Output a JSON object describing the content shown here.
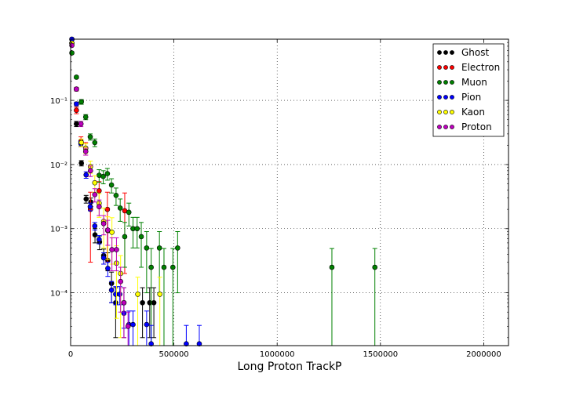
{
  "chart_data": {
    "type": "scatter",
    "title": "",
    "xlabel": "Long Proton TrackP",
    "ylabel": "",
    "x_scale": "linear",
    "y_scale": "log",
    "xlim": [
      0,
      2120000
    ],
    "ylim": [
      1.5e-05,
      0.9
    ],
    "x_ticks": [
      0,
      500000,
      1000000,
      1500000,
      2000000
    ],
    "x_tick_labels": [
      "0",
      "500000",
      "1000000",
      "1500000",
      "2000000"
    ],
    "y_ticks": [
      0.0001,
      0.001,
      0.01,
      0.1
    ],
    "y_tick_labels": [
      "10⁻⁴",
      "10⁻³",
      "10⁻²",
      "10⁻¹"
    ],
    "grid": true,
    "legend_position": "top-right",
    "series": [
      {
        "name": "Ghost",
        "color": "#000000",
        "points": [
          [
            6000,
            0.9,
            0.02
          ],
          [
            28000,
            0.043,
            0.004
          ],
          [
            52000,
            0.0105,
            0.001
          ],
          [
            75000,
            0.0029,
            0.0004
          ],
          [
            98000,
            0.0026,
            0.0004
          ],
          [
            118000,
            0.0008,
            0.0002
          ],
          [
            140000,
            0.00062,
            0.00015
          ],
          [
            160000,
            0.00038,
            0.0001
          ],
          [
            180000,
            0.00032,
            0.0001
          ],
          [
            198000,
            0.00014,
            7e-05
          ],
          [
            218000,
            7e-05,
            5e-05
          ],
          [
            258000,
            7e-05,
            5e-05
          ],
          [
            348000,
            7e-05,
            5e-05
          ],
          [
            383000,
            7e-05,
            5e-05
          ],
          [
            403000,
            7e-05,
            5e-05
          ]
        ]
      },
      {
        "name": "Electron",
        "color": "#ff0000",
        "points": [
          [
            6000,
            0.78,
            0.02
          ],
          [
            28000,
            0.07,
            0.008
          ],
          [
            50000,
            0.023,
            0.004
          ],
          [
            73000,
            0.018,
            0.004
          ],
          [
            96000,
            0.002,
            0.0017
          ],
          [
            138000,
            0.0039,
            0.0015
          ],
          [
            178000,
            0.002,
            0.0017
          ],
          [
            262000,
            0.0019,
            0.0017
          ]
        ]
      },
      {
        "name": "Muon",
        "color": "#008000",
        "points": [
          [
            6000,
            0.55,
            0.02
          ],
          [
            28000,
            0.23,
            0.01
          ],
          [
            52000,
            0.095,
            0.008
          ],
          [
            73000,
            0.055,
            0.005
          ],
          [
            95000,
            0.027,
            0.003
          ],
          [
            117000,
            0.022,
            0.003
          ],
          [
            138000,
            0.0068,
            0.0015
          ],
          [
            158000,
            0.0065,
            0.0015
          ],
          [
            178000,
            0.0072,
            0.0015
          ],
          [
            198000,
            0.0048,
            0.0012
          ],
          [
            220000,
            0.0033,
            0.001
          ],
          [
            240000,
            0.0021,
            0.0008
          ],
          [
            262000,
            0.00075,
            0.0005
          ],
          [
            282000,
            0.0018,
            0.0007
          ],
          [
            302000,
            0.001,
            0.0005
          ],
          [
            322000,
            0.001,
            0.0005
          ],
          [
            342000,
            0.00075,
            0.0005
          ],
          [
            368000,
            0.0005,
            0.0004
          ],
          [
            390000,
            0.00025,
            0.00024
          ],
          [
            430000,
            0.0005,
            0.0004
          ],
          [
            452000,
            0.00025,
            0.00024
          ],
          [
            495000,
            0.00025,
            0.00024
          ],
          [
            518000,
            0.0005,
            0.0004
          ],
          [
            1265000,
            0.00025,
            0.00024
          ],
          [
            1473000,
            0.00025,
            0.00024
          ]
        ]
      },
      {
        "name": "Pion",
        "color": "#0000ff",
        "points": [
          [
            6000,
            0.9,
            0.02
          ],
          [
            28000,
            0.088,
            0.006
          ],
          [
            50000,
            0.021,
            0.002
          ],
          [
            75000,
            0.0069,
            0.0008
          ],
          [
            95000,
            0.0022,
            0.0003
          ],
          [
            117000,
            0.0011,
            0.00015
          ],
          [
            138000,
            0.00068,
            0.0001
          ],
          [
            160000,
            0.00035,
            7e-05
          ],
          [
            180000,
            0.00024,
            6e-05
          ],
          [
            198000,
            0.00011,
            4e-05
          ],
          [
            218000,
            9.5e-05,
            3e-05
          ],
          [
            238000,
            9.5e-05,
            3e-05
          ],
          [
            258000,
            4.8e-05,
            2e-05
          ],
          [
            282000,
            3.2e-05,
            2e-05
          ],
          [
            302000,
            3.2e-05,
            2e-05
          ],
          [
            368000,
            3.2e-05,
            2e-05
          ],
          [
            390000,
            1.6e-05,
            1.5e-05
          ],
          [
            560000,
            1.6e-05,
            1.5e-05
          ],
          [
            623000,
            1.6e-05,
            1.5e-05
          ]
        ]
      },
      {
        "name": "Kaon",
        "color": "#ffff00",
        "points": [
          [
            6000,
            0.78,
            0.02
          ],
          [
            28000,
            0.15,
            0.01
          ],
          [
            52000,
            0.022,
            0.003
          ],
          [
            73000,
            0.018,
            0.003
          ],
          [
            96000,
            0.0093,
            0.002
          ],
          [
            117000,
            0.0052,
            0.0015
          ],
          [
            138000,
            0.0025,
            0.001
          ],
          [
            160000,
            0.0013,
            0.0008
          ],
          [
            180000,
            0.00093,
            0.0006
          ],
          [
            200000,
            0.00088,
            0.0006
          ],
          [
            222000,
            0.00029,
            0.00025
          ],
          [
            242000,
            0.0002,
            0.00018
          ],
          [
            325000,
            9.5e-05,
            8e-05
          ],
          [
            432000,
            9.5e-05,
            8e-05
          ]
        ]
      },
      {
        "name": "Proton",
        "color": "#bf00bf",
        "points": [
          [
            6000,
            0.72,
            0.02
          ],
          [
            28000,
            0.15,
            0.01
          ],
          [
            50000,
            0.043,
            0.004
          ],
          [
            73000,
            0.016,
            0.002
          ],
          [
            96000,
            0.008,
            0.0015
          ],
          [
            117000,
            0.0034,
            0.0008
          ],
          [
            138000,
            0.0022,
            0.0006
          ],
          [
            160000,
            0.0012,
            0.0004
          ],
          [
            180000,
            0.00095,
            0.0004
          ],
          [
            200000,
            0.00047,
            0.00025
          ],
          [
            222000,
            0.00047,
            0.00025
          ],
          [
            242000,
            0.00015,
            0.0001
          ],
          [
            258000,
            7e-05,
            5e-05
          ],
          [
            278000,
            3e-05,
            2e-05
          ]
        ]
      }
    ]
  }
}
